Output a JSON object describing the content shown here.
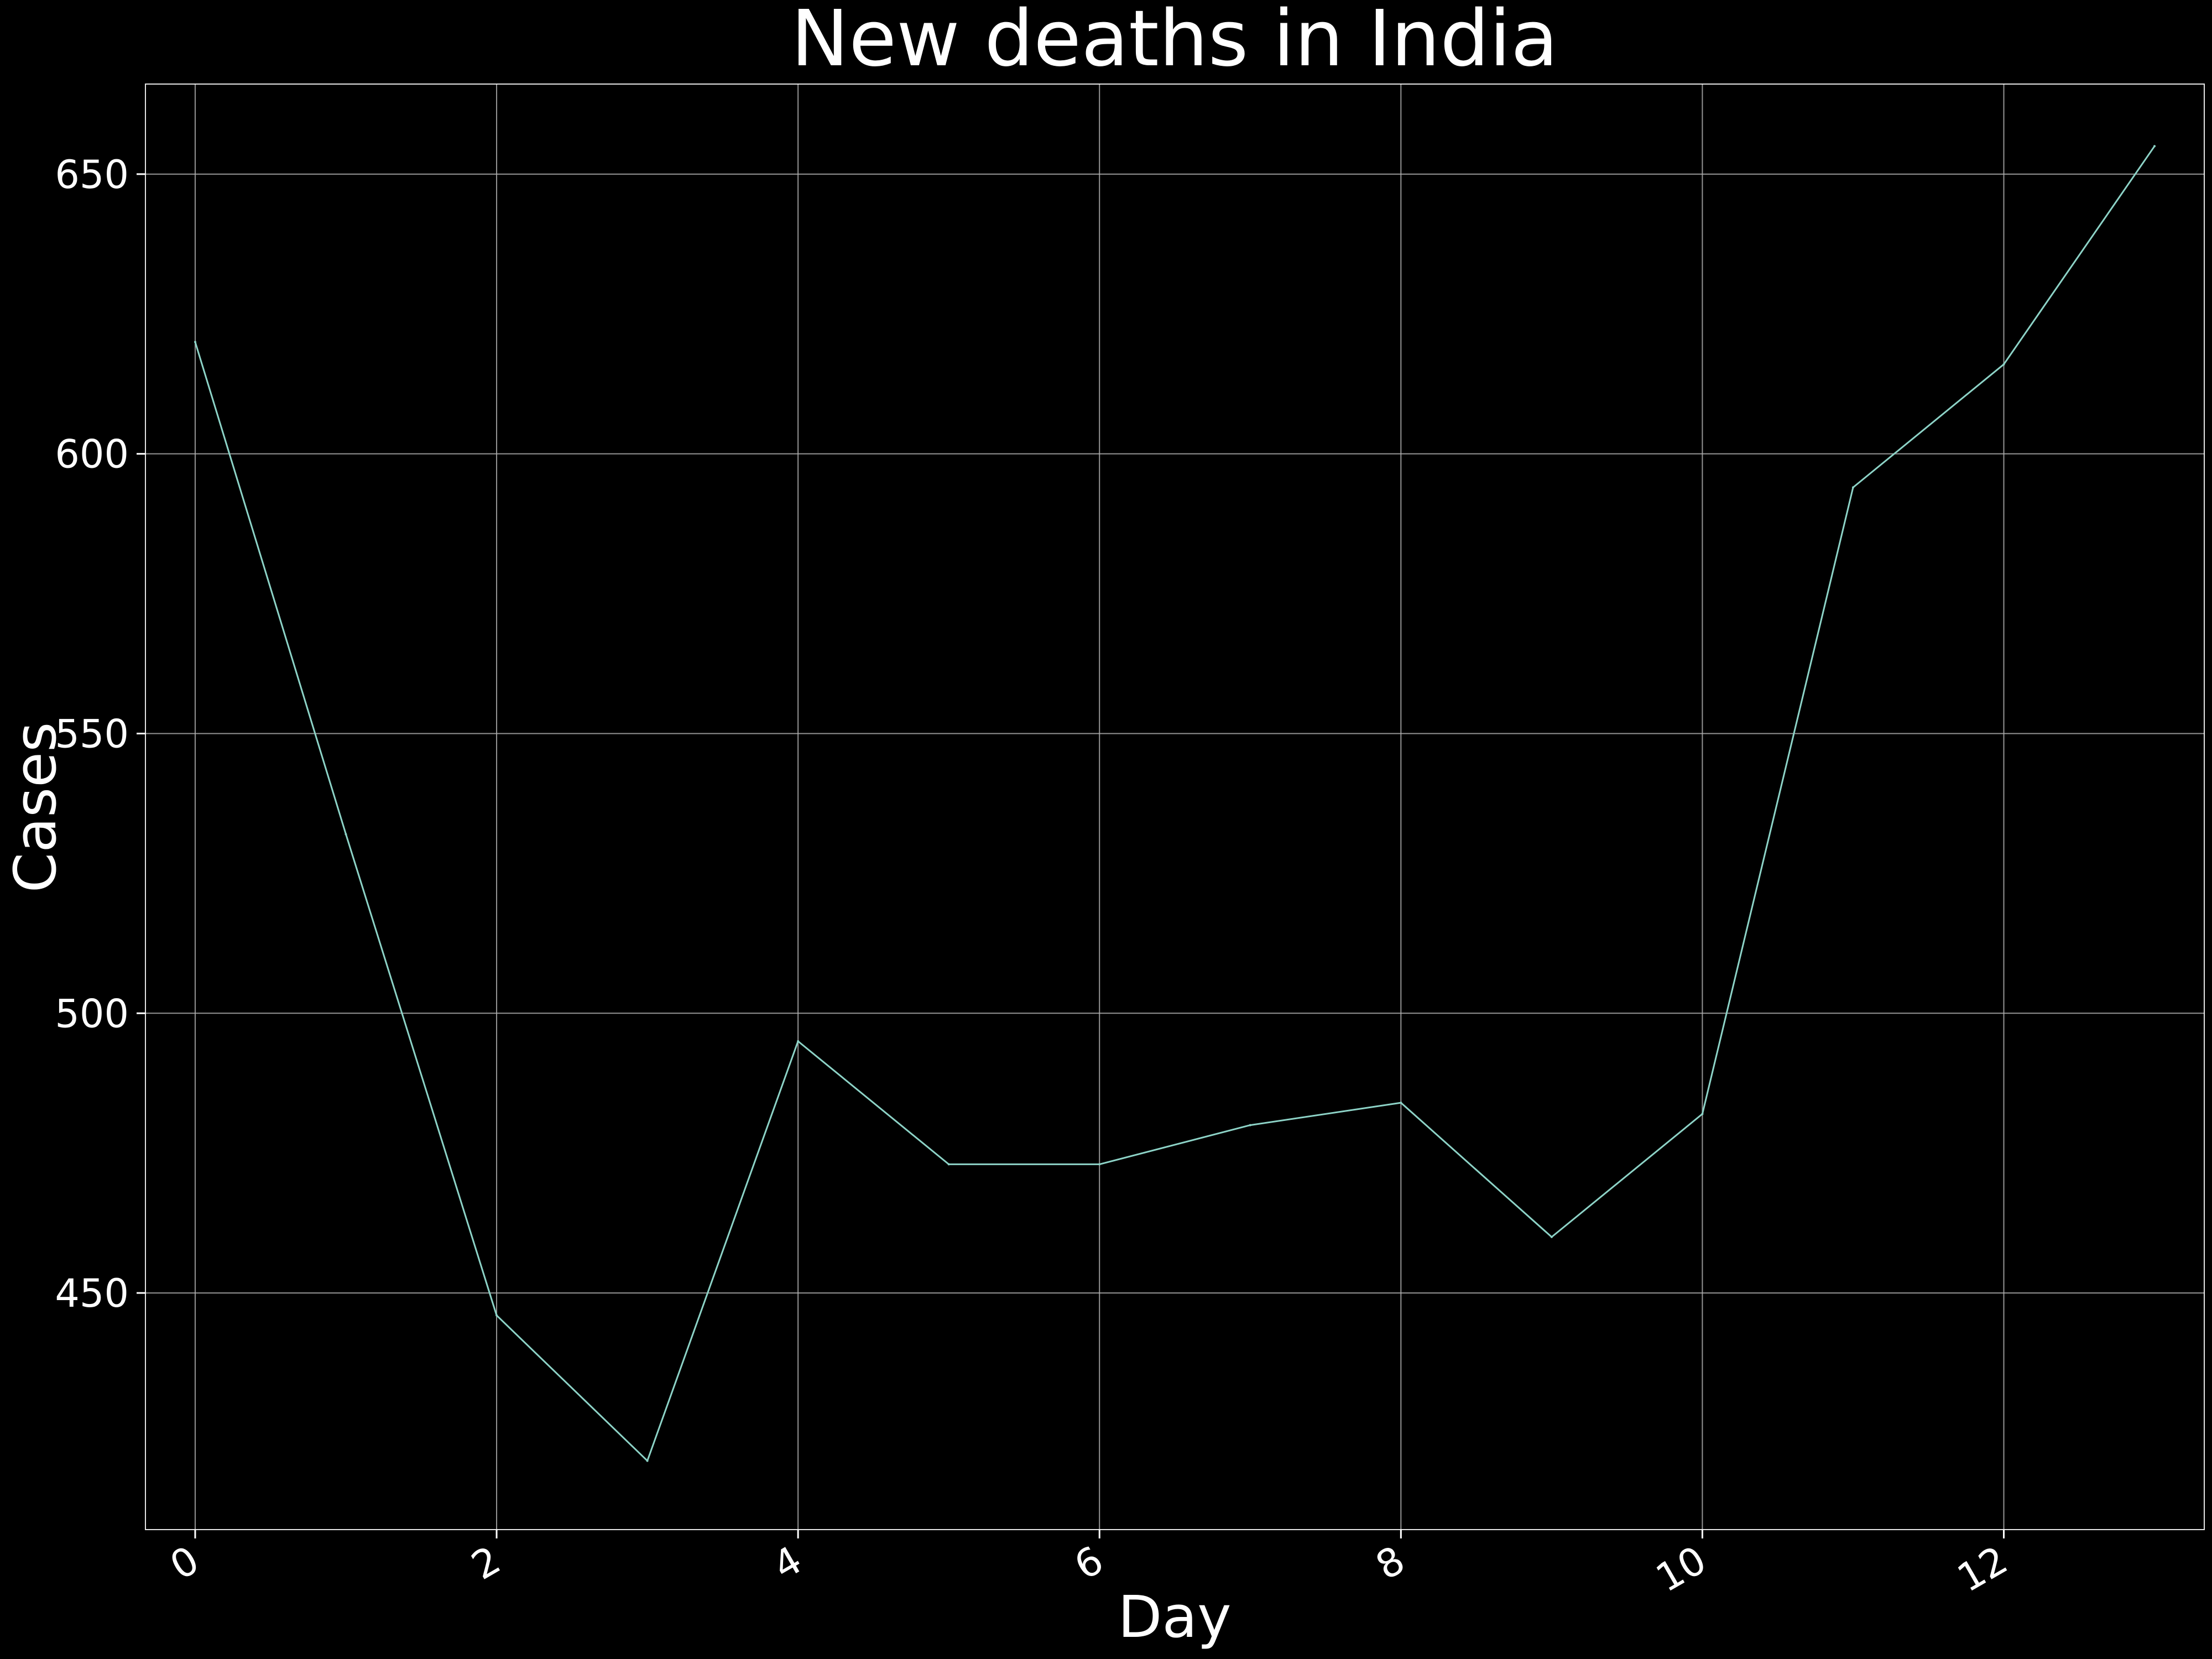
{
  "chart_data": {
    "type": "line",
    "title": "New deaths in India",
    "xlabel": "Day",
    "ylabel": "Cases",
    "x": [
      0,
      1,
      2,
      3,
      4,
      5,
      6,
      7,
      8,
      9,
      10,
      11,
      12,
      13
    ],
    "series": [
      {
        "values": [
          620,
          532,
          446,
          420,
          495,
          473,
          473,
          480,
          484,
          460,
          482,
          594,
          616,
          655
        ]
      }
    ],
    "xlim": [
      -0.33,
      13.33
    ],
    "ylim": [
      407.7,
      666.1
    ],
    "xticks": [
      0,
      2,
      4,
      6,
      8,
      10,
      12
    ],
    "xtick_labels": [
      "0",
      "2",
      "4",
      "6",
      "8",
      "10",
      "12"
    ],
    "yticks": [
      450,
      500,
      550,
      600,
      650
    ],
    "ytick_labels": [
      "450",
      "500",
      "550",
      "600",
      "650"
    ],
    "grid": true,
    "xtick_rotation": "rotated",
    "colors": {
      "background": "#000000",
      "line": "#8dd3c7",
      "text": "#ffffff",
      "grid": "#b0b0b0"
    }
  }
}
